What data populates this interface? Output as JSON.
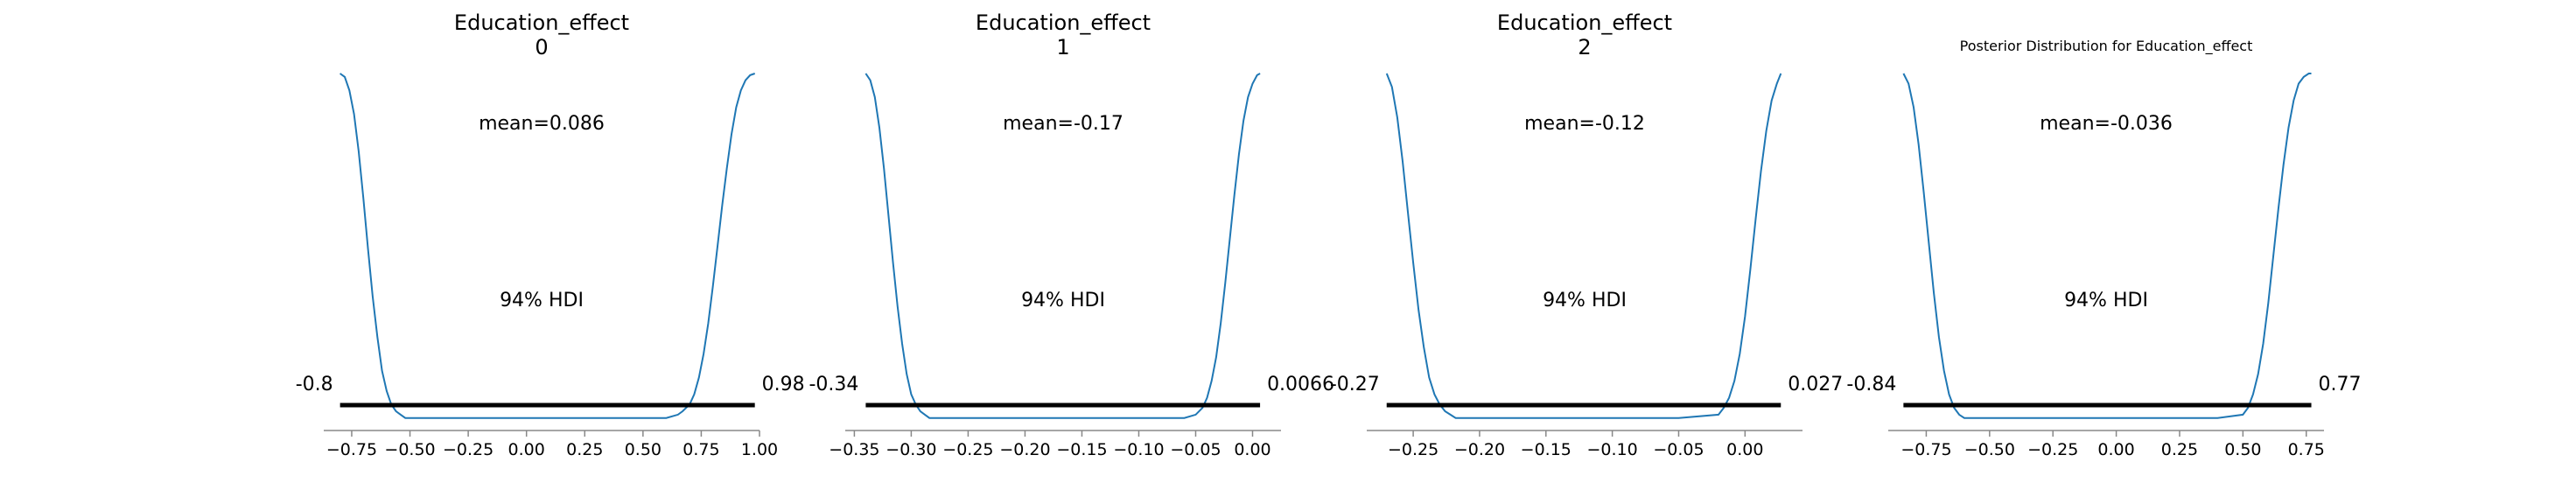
{
  "chart_data": [
    {
      "type": "density",
      "title": "Education_effect",
      "subtitle": "0",
      "mean_label": "mean=0.086",
      "hdi_label": "94% HDI",
      "hdi": [
        -0.8,
        0.98
      ],
      "hdi_low_label": "-0.8",
      "hdi_high_label": "0.98",
      "xlim": [
        -0.87,
        1.0
      ],
      "ticks": [
        -0.75,
        -0.5,
        -0.25,
        0.0,
        0.25,
        0.5,
        0.75,
        1.0
      ],
      "tick_labels": [
        "−0.75",
        "−0.50",
        "−0.25",
        "0.00",
        "0.25",
        "0.50",
        "0.75",
        "1.00"
      ],
      "density_x": [
        -0.8,
        -0.78,
        -0.76,
        -0.74,
        -0.72,
        -0.7,
        -0.68,
        -0.66,
        -0.64,
        -0.62,
        -0.6,
        -0.58,
        -0.56,
        -0.54,
        -0.52,
        -0.5,
        -0.45,
        -0.3,
        0.0,
        0.3,
        0.6,
        0.65,
        0.67,
        0.7,
        0.72,
        0.74,
        0.76,
        0.78,
        0.8,
        0.82,
        0.84,
        0.86,
        0.88,
        0.9,
        0.92,
        0.94,
        0.96,
        0.98
      ],
      "density_y": [
        1.0,
        0.99,
        0.95,
        0.88,
        0.77,
        0.63,
        0.48,
        0.34,
        0.22,
        0.12,
        0.06,
        0.02,
        0.0,
        -0.01,
        -0.02,
        -0.02,
        -0.02,
        -0.02,
        -0.02,
        -0.02,
        -0.02,
        -0.01,
        0.0,
        0.02,
        0.05,
        0.1,
        0.17,
        0.26,
        0.37,
        0.49,
        0.61,
        0.72,
        0.82,
        0.9,
        0.95,
        0.98,
        0.995,
        1.0
      ]
    },
    {
      "type": "density",
      "title": "Education_effect",
      "subtitle": "1",
      "mean_label": "mean=-0.17",
      "hdi_label": "94% HDI",
      "hdi": [
        -0.34,
        0.0066
      ],
      "hdi_low_label": "-0.34",
      "hdi_high_label": "0.0066",
      "xlim": [
        -0.358,
        0.025
      ],
      "ticks": [
        -0.35,
        -0.3,
        -0.25,
        -0.2,
        -0.15,
        -0.1,
        -0.05,
        0.0
      ],
      "tick_labels": [
        "−0.35",
        "−0.30",
        "−0.25",
        "−0.20",
        "−0.15",
        "−0.10",
        "−0.05",
        "0.00"
      ],
      "density_x": [
        -0.34,
        -0.336,
        -0.332,
        -0.328,
        -0.324,
        -0.32,
        -0.316,
        -0.312,
        -0.308,
        -0.304,
        -0.3,
        -0.296,
        -0.292,
        -0.288,
        -0.284,
        -0.28,
        -0.26,
        -0.2,
        -0.1,
        -0.06,
        -0.05,
        -0.044,
        -0.04,
        -0.036,
        -0.032,
        -0.028,
        -0.024,
        -0.02,
        -0.016,
        -0.012,
        -0.008,
        -0.004,
        0.0,
        0.004,
        0.0066
      ],
      "density_y": [
        1.0,
        0.98,
        0.93,
        0.84,
        0.72,
        0.58,
        0.44,
        0.31,
        0.2,
        0.11,
        0.05,
        0.02,
        0.0,
        -0.01,
        -0.02,
        -0.02,
        -0.02,
        -0.02,
        -0.02,
        -0.02,
        -0.01,
        0.01,
        0.04,
        0.09,
        0.16,
        0.26,
        0.38,
        0.51,
        0.64,
        0.76,
        0.86,
        0.93,
        0.97,
        0.995,
        1.0
      ]
    },
    {
      "type": "density",
      "title": "Education_effect",
      "subtitle": "2",
      "mean_label": "mean=-0.12",
      "hdi_label": "94% HDI",
      "hdi": [
        -0.27,
        0.027
      ],
      "hdi_low_label": "-0.27",
      "hdi_high_label": "0.027",
      "xlim": [
        -0.285,
        0.0433
      ],
      "ticks": [
        -0.25,
        -0.2,
        -0.15,
        -0.1,
        -0.05,
        0.0
      ],
      "tick_labels": [
        "−0.25",
        "−0.20",
        "−0.15",
        "−0.10",
        "−0.05",
        "0.00"
      ],
      "density_x": [
        -0.27,
        -0.266,
        -0.262,
        -0.258,
        -0.254,
        -0.25,
        -0.246,
        -0.242,
        -0.238,
        -0.234,
        -0.23,
        -0.226,
        -0.222,
        -0.218,
        -0.21,
        -0.15,
        -0.05,
        -0.02,
        -0.016,
        -0.012,
        -0.008,
        -0.004,
        0.0,
        0.004,
        0.008,
        0.012,
        0.016,
        0.02,
        0.024,
        0.027
      ],
      "density_y": [
        1.0,
        0.96,
        0.87,
        0.74,
        0.59,
        0.44,
        0.3,
        0.19,
        0.1,
        0.05,
        0.02,
        0.0,
        -0.01,
        -0.02,
        -0.02,
        -0.02,
        -0.02,
        -0.01,
        0.01,
        0.04,
        0.09,
        0.17,
        0.28,
        0.42,
        0.57,
        0.71,
        0.83,
        0.92,
        0.97,
        1.0
      ]
    },
    {
      "type": "density",
      "title": "Posterior Distribution for Education_effect",
      "mean_label": "mean=-0.036",
      "hdi_label": "94% HDI",
      "hdi": [
        -0.84,
        0.77
      ],
      "hdi_low_label": "-0.84",
      "hdi_high_label": "0.77",
      "xlim": [
        -0.9,
        0.82
      ],
      "ticks": [
        -0.75,
        -0.5,
        -0.25,
        0.0,
        0.25,
        0.5,
        0.75
      ],
      "tick_labels": [
        "−0.75",
        "−0.50",
        "−0.25",
        "0.00",
        "0.25",
        "0.50",
        "0.75"
      ],
      "density_x": [
        -0.84,
        -0.82,
        -0.8,
        -0.78,
        -0.76,
        -0.74,
        -0.72,
        -0.7,
        -0.68,
        -0.66,
        -0.64,
        -0.62,
        -0.6,
        -0.58,
        -0.55,
        -0.4,
        0.0,
        0.4,
        0.5,
        0.52,
        0.54,
        0.56,
        0.58,
        0.6,
        0.62,
        0.64,
        0.66,
        0.68,
        0.7,
        0.72,
        0.74,
        0.76,
        0.77
      ],
      "density_y": [
        1.0,
        0.97,
        0.9,
        0.79,
        0.65,
        0.5,
        0.35,
        0.22,
        0.12,
        0.05,
        0.01,
        -0.01,
        -0.02,
        -0.02,
        -0.02,
        -0.02,
        -0.02,
        -0.02,
        -0.01,
        0.01,
        0.05,
        0.11,
        0.2,
        0.32,
        0.46,
        0.6,
        0.73,
        0.84,
        0.92,
        0.97,
        0.99,
        1.0,
        1.0
      ]
    }
  ],
  "colors": {
    "line": "#1f77b4",
    "hdi_bar": "#000000",
    "axis": "#888888"
  }
}
